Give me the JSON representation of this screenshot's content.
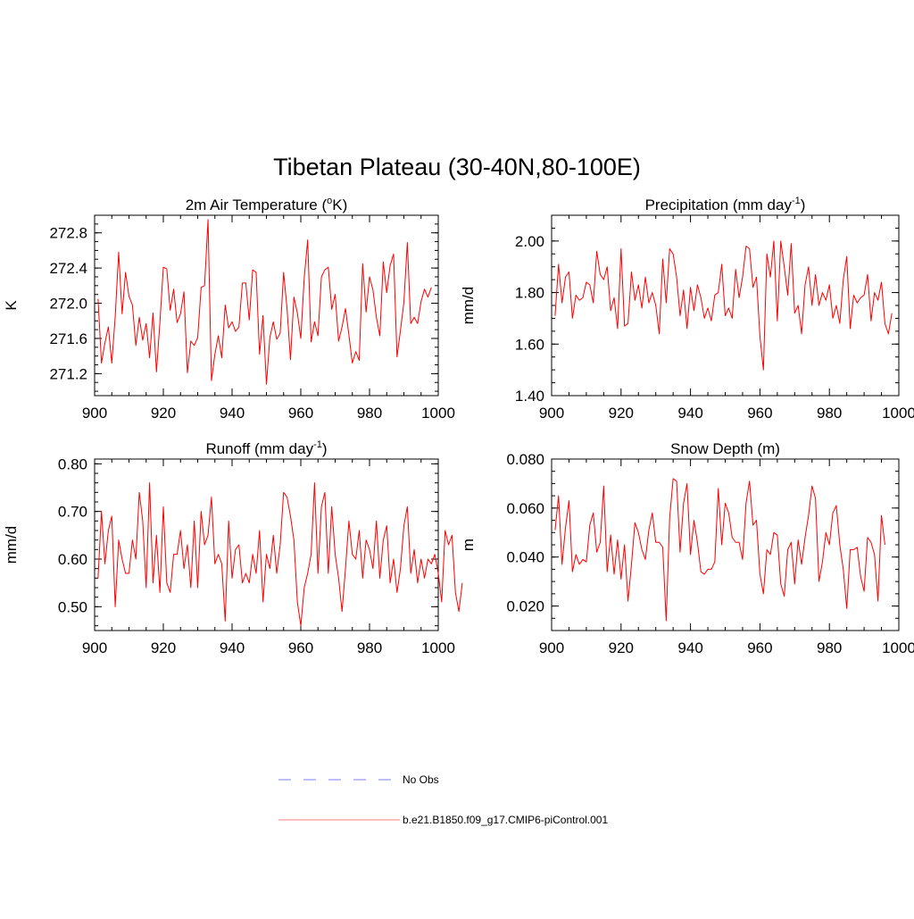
{
  "page_title": "Tibetan Plateau (30-40N,80-100E)",
  "legend": {
    "obs_label": "No Obs",
    "obs_color": "#9999ff",
    "model_label": "b.e21.B1850.f09_g17.CMIP6-piControl.001",
    "model_color": "#ff9999"
  },
  "series_color": "#ff0000",
  "chart_data": [
    {
      "type": "line",
      "title": "2m Air Temperature (",
      "title_sup": "o",
      "title_suffix": "K)",
      "ylabel": "K",
      "xlim": [
        900,
        1000
      ],
      "ylim": [
        270.95,
        273.0
      ],
      "xticks": [
        900,
        920,
        940,
        960,
        980,
        1000
      ],
      "xtick_labels": [
        "900",
        "920",
        "940",
        "960",
        "980",
        "1000"
      ],
      "yticks": [
        271.2,
        271.6,
        272.0,
        272.4,
        272.8
      ],
      "ytick_labels": [
        "271.2",
        "271.6",
        "272.0",
        "272.4",
        "272.8"
      ],
      "yminor": 0.1,
      "x_start": 901,
      "values": [
        272.05,
        271.32,
        271.55,
        271.73,
        271.32,
        271.85,
        272.58,
        271.88,
        272.35,
        272.08,
        271.98,
        271.52,
        271.84,
        271.58,
        271.77,
        271.38,
        271.89,
        271.22,
        271.78,
        272.41,
        272.39,
        271.92,
        272.16,
        271.78,
        271.88,
        272.13,
        271.21,
        271.57,
        271.52,
        271.61,
        272.18,
        272.2,
        272.95,
        271.12,
        271.42,
        271.63,
        271.38,
        271.98,
        271.72,
        271.79,
        271.68,
        271.73,
        272.23,
        272.23,
        271.81,
        272.38,
        272.35,
        271.42,
        271.86,
        271.08,
        271.61,
        271.79,
        271.59,
        271.66,
        272.35,
        271.94,
        271.36,
        272.07,
        271.89,
        271.6,
        272.29,
        272.72,
        271.56,
        271.79,
        271.63,
        272.3,
        272.38,
        272.41,
        271.93,
        272.1,
        271.57,
        271.73,
        271.94,
        271.64,
        271.32,
        271.45,
        271.35,
        272.45,
        271.9,
        272.3,
        272.15,
        271.84,
        271.63,
        272.47,
        272.12,
        272.43,
        272.56,
        271.39,
        271.69,
        272.01,
        272.69,
        271.77,
        271.84,
        271.77,
        272.02,
        272.16,
        272.07,
        272.18
      ],
      "panel": "tl"
    },
    {
      "type": "line",
      "title": "Precipitation (mm day",
      "title_sup": "-1",
      "title_suffix": ")",
      "ylabel": "mm/d",
      "xlim": [
        900,
        1000
      ],
      "ylim": [
        1.4,
        2.1
      ],
      "xticks": [
        900,
        920,
        940,
        960,
        980,
        1000
      ],
      "xtick_labels": [
        "900",
        "920",
        "940",
        "960",
        "980",
        "1000"
      ],
      "yticks": [
        1.4,
        1.6,
        1.8,
        2.0
      ],
      "ytick_labels": [
        "1.40",
        "1.60",
        "1.80",
        "2.00"
      ],
      "yminor": 0.05,
      "x_start": 901,
      "values": [
        1.71,
        1.91,
        1.76,
        1.86,
        1.88,
        1.7,
        1.79,
        1.77,
        1.78,
        1.84,
        1.83,
        1.76,
        1.96,
        1.87,
        1.85,
        1.9,
        1.73,
        1.78,
        1.66,
        1.97,
        1.67,
        1.68,
        1.88,
        1.77,
        1.83,
        1.74,
        1.86,
        1.76,
        1.8,
        1.75,
        1.64,
        1.93,
        1.76,
        1.97,
        1.95,
        1.86,
        1.71,
        1.81,
        1.66,
        1.82,
        1.73,
        1.83,
        1.78,
        1.7,
        1.74,
        1.69,
        1.79,
        1.8,
        1.91,
        1.71,
        1.74,
        1.7,
        1.89,
        1.78,
        1.86,
        1.98,
        1.97,
        1.82,
        1.86,
        1.63,
        1.5,
        1.95,
        1.86,
        2.0,
        1.69,
        2.0,
        1.9,
        1.79,
        1.99,
        1.72,
        1.75,
        1.64,
        1.83,
        1.9,
        1.75,
        1.87,
        1.75,
        1.8,
        1.77,
        1.83,
        1.7,
        1.75,
        1.68,
        1.85,
        1.94,
        1.66,
        1.79,
        1.76,
        1.78,
        1.79,
        1.87,
        1.69,
        1.8,
        1.77,
        1.84,
        1.68,
        1.64,
        1.72
      ],
      "panel": "tr"
    },
    {
      "type": "line",
      "title": "Runoff (mm day",
      "title_sup": "-1",
      "title_suffix": ")",
      "ylabel": "mm/d",
      "xlim": [
        900,
        1000
      ],
      "ylim": [
        0.45,
        0.81
      ],
      "xticks": [
        900,
        920,
        940,
        960,
        980,
        1000
      ],
      "xtick_labels": [
        "900",
        "920",
        "940",
        "960",
        "980",
        "1000"
      ],
      "yticks": [
        0.5,
        0.6,
        0.7,
        0.8
      ],
      "ytick_labels": [
        "0.50",
        "0.60",
        "0.70",
        "0.80"
      ],
      "yminor": 0.02,
      "x_start": 901,
      "values": [
        0.56,
        0.7,
        0.59,
        0.66,
        0.69,
        0.5,
        0.64,
        0.6,
        0.57,
        0.57,
        0.64,
        0.6,
        0.74,
        0.68,
        0.54,
        0.76,
        0.55,
        0.65,
        0.53,
        0.71,
        0.55,
        0.53,
        0.61,
        0.61,
        0.66,
        0.58,
        0.63,
        0.54,
        0.68,
        0.54,
        0.7,
        0.63,
        0.65,
        0.73,
        0.59,
        0.61,
        0.59,
        0.47,
        0.68,
        0.56,
        0.62,
        0.63,
        0.55,
        0.57,
        0.55,
        0.61,
        0.57,
        0.66,
        0.51,
        0.61,
        0.58,
        0.65,
        0.57,
        0.63,
        0.74,
        0.73,
        0.69,
        0.64,
        0.51,
        0.46,
        0.54,
        0.57,
        0.61,
        0.76,
        0.57,
        0.71,
        0.74,
        0.57,
        0.71,
        0.61,
        0.56,
        0.49,
        0.58,
        0.68,
        0.61,
        0.6,
        0.66,
        0.56,
        0.64,
        0.62,
        0.58,
        0.68,
        0.56,
        0.64,
        0.67,
        0.55,
        0.6,
        0.53,
        0.58,
        0.67,
        0.71,
        0.57,
        0.62,
        0.55,
        0.6,
        0.56,
        0.6,
        0.59,
        0.61,
        0.57,
        0.51,
        0.66,
        0.63,
        0.65,
        0.53,
        0.49,
        0.55
      ],
      "panel": "bl"
    },
    {
      "type": "line",
      "title": "Snow Depth (m)",
      "title_sup": "",
      "title_suffix": "",
      "ylabel": "m",
      "xlim": [
        900,
        1000
      ],
      "ylim": [
        0.01,
        0.08
      ],
      "xticks": [
        900,
        920,
        940,
        960,
        980,
        1000
      ],
      "xtick_labels": [
        "900",
        "920",
        "940",
        "960",
        "980",
        "1000"
      ],
      "yticks": [
        0.02,
        0.04,
        0.06,
        0.08
      ],
      "ytick_labels": [
        "0.020",
        "0.040",
        "0.060",
        "0.080"
      ],
      "yminor": 0.005,
      "x_start": 901,
      "values": [
        0.051,
        0.065,
        0.037,
        0.052,
        0.063,
        0.034,
        0.041,
        0.037,
        0.039,
        0.038,
        0.053,
        0.058,
        0.042,
        0.046,
        0.069,
        0.034,
        0.049,
        0.033,
        0.047,
        0.031,
        0.045,
        0.022,
        0.037,
        0.054,
        0.05,
        0.043,
        0.039,
        0.051,
        0.058,
        0.046,
        0.046,
        0.044,
        0.014,
        0.056,
        0.072,
        0.071,
        0.042,
        0.062,
        0.07,
        0.041,
        0.055,
        0.046,
        0.034,
        0.033,
        0.035,
        0.035,
        0.038,
        0.068,
        0.045,
        0.062,
        0.058,
        0.048,
        0.046,
        0.046,
        0.039,
        0.062,
        0.071,
        0.053,
        0.055,
        0.033,
        0.025,
        0.043,
        0.041,
        0.05,
        0.049,
        0.029,
        0.024,
        0.043,
        0.046,
        0.029,
        0.047,
        0.037,
        0.048,
        0.057,
        0.069,
        0.064,
        0.03,
        0.038,
        0.05,
        0.045,
        0.058,
        0.061,
        0.045,
        0.035,
        0.019,
        0.043,
        0.043,
        0.044,
        0.032,
        0.026,
        0.048,
        0.046,
        0.041,
        0.022,
        0.057,
        0.045
      ],
      "panel": "br"
    }
  ]
}
